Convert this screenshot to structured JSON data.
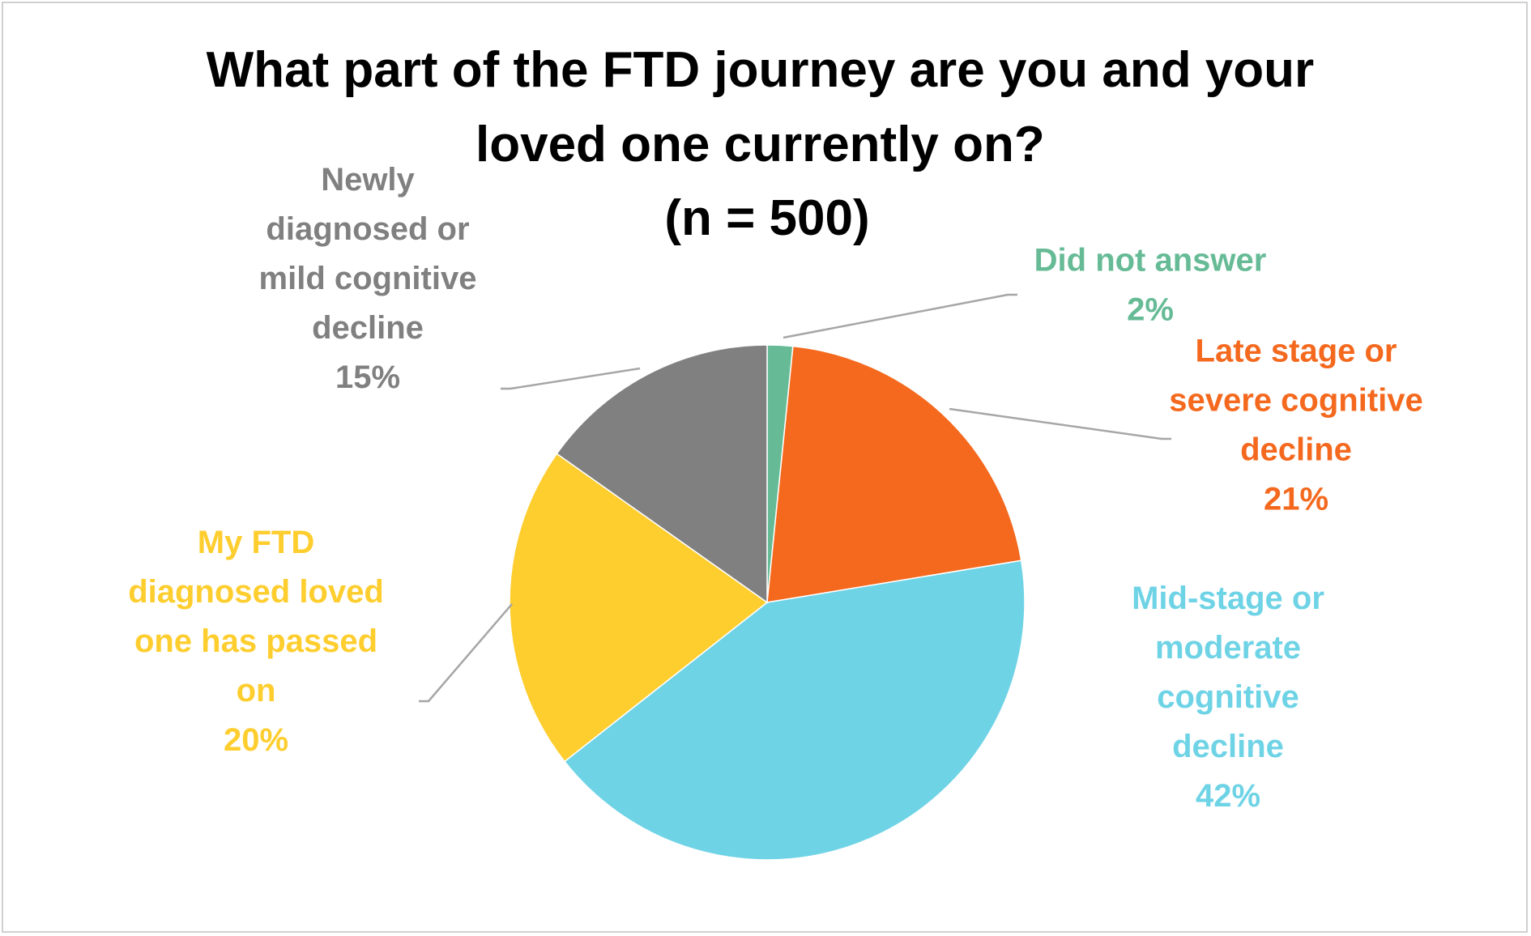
{
  "chart_data": {
    "type": "pie",
    "title": [
      "What part of the FTD journey are you and your",
      "loved one currently on?",
      "(n = 500)"
    ],
    "start_angle_deg": 0,
    "direction": "clockwise",
    "legend": "none",
    "slices": [
      {
        "label": [
          "Did not answer"
        ],
        "pct_label": "2%",
        "value": 1.6,
        "color": "#66bb96"
      },
      {
        "label": [
          "Late stage or",
          "severe cognitive",
          "decline"
        ],
        "pct_label": "21%",
        "value": 20.8,
        "color": "#f4691e"
      },
      {
        "label": [
          "Mid-stage or",
          "moderate",
          "cognitive",
          "decline"
        ],
        "pct_label": "42%",
        "value": 42.0,
        "color": "#6fd3e6"
      },
      {
        "label": [
          "My FTD",
          "diagnosed loved",
          "one has passed",
          "on"
        ],
        "pct_label": "20%",
        "value": 20.4,
        "color": "#fecd2e"
      },
      {
        "label": [
          "Newly",
          "diagnosed or",
          "mild cognitive",
          "decline"
        ],
        "pct_label": "15%",
        "value": 15.2,
        "color": "#808080"
      }
    ]
  }
}
